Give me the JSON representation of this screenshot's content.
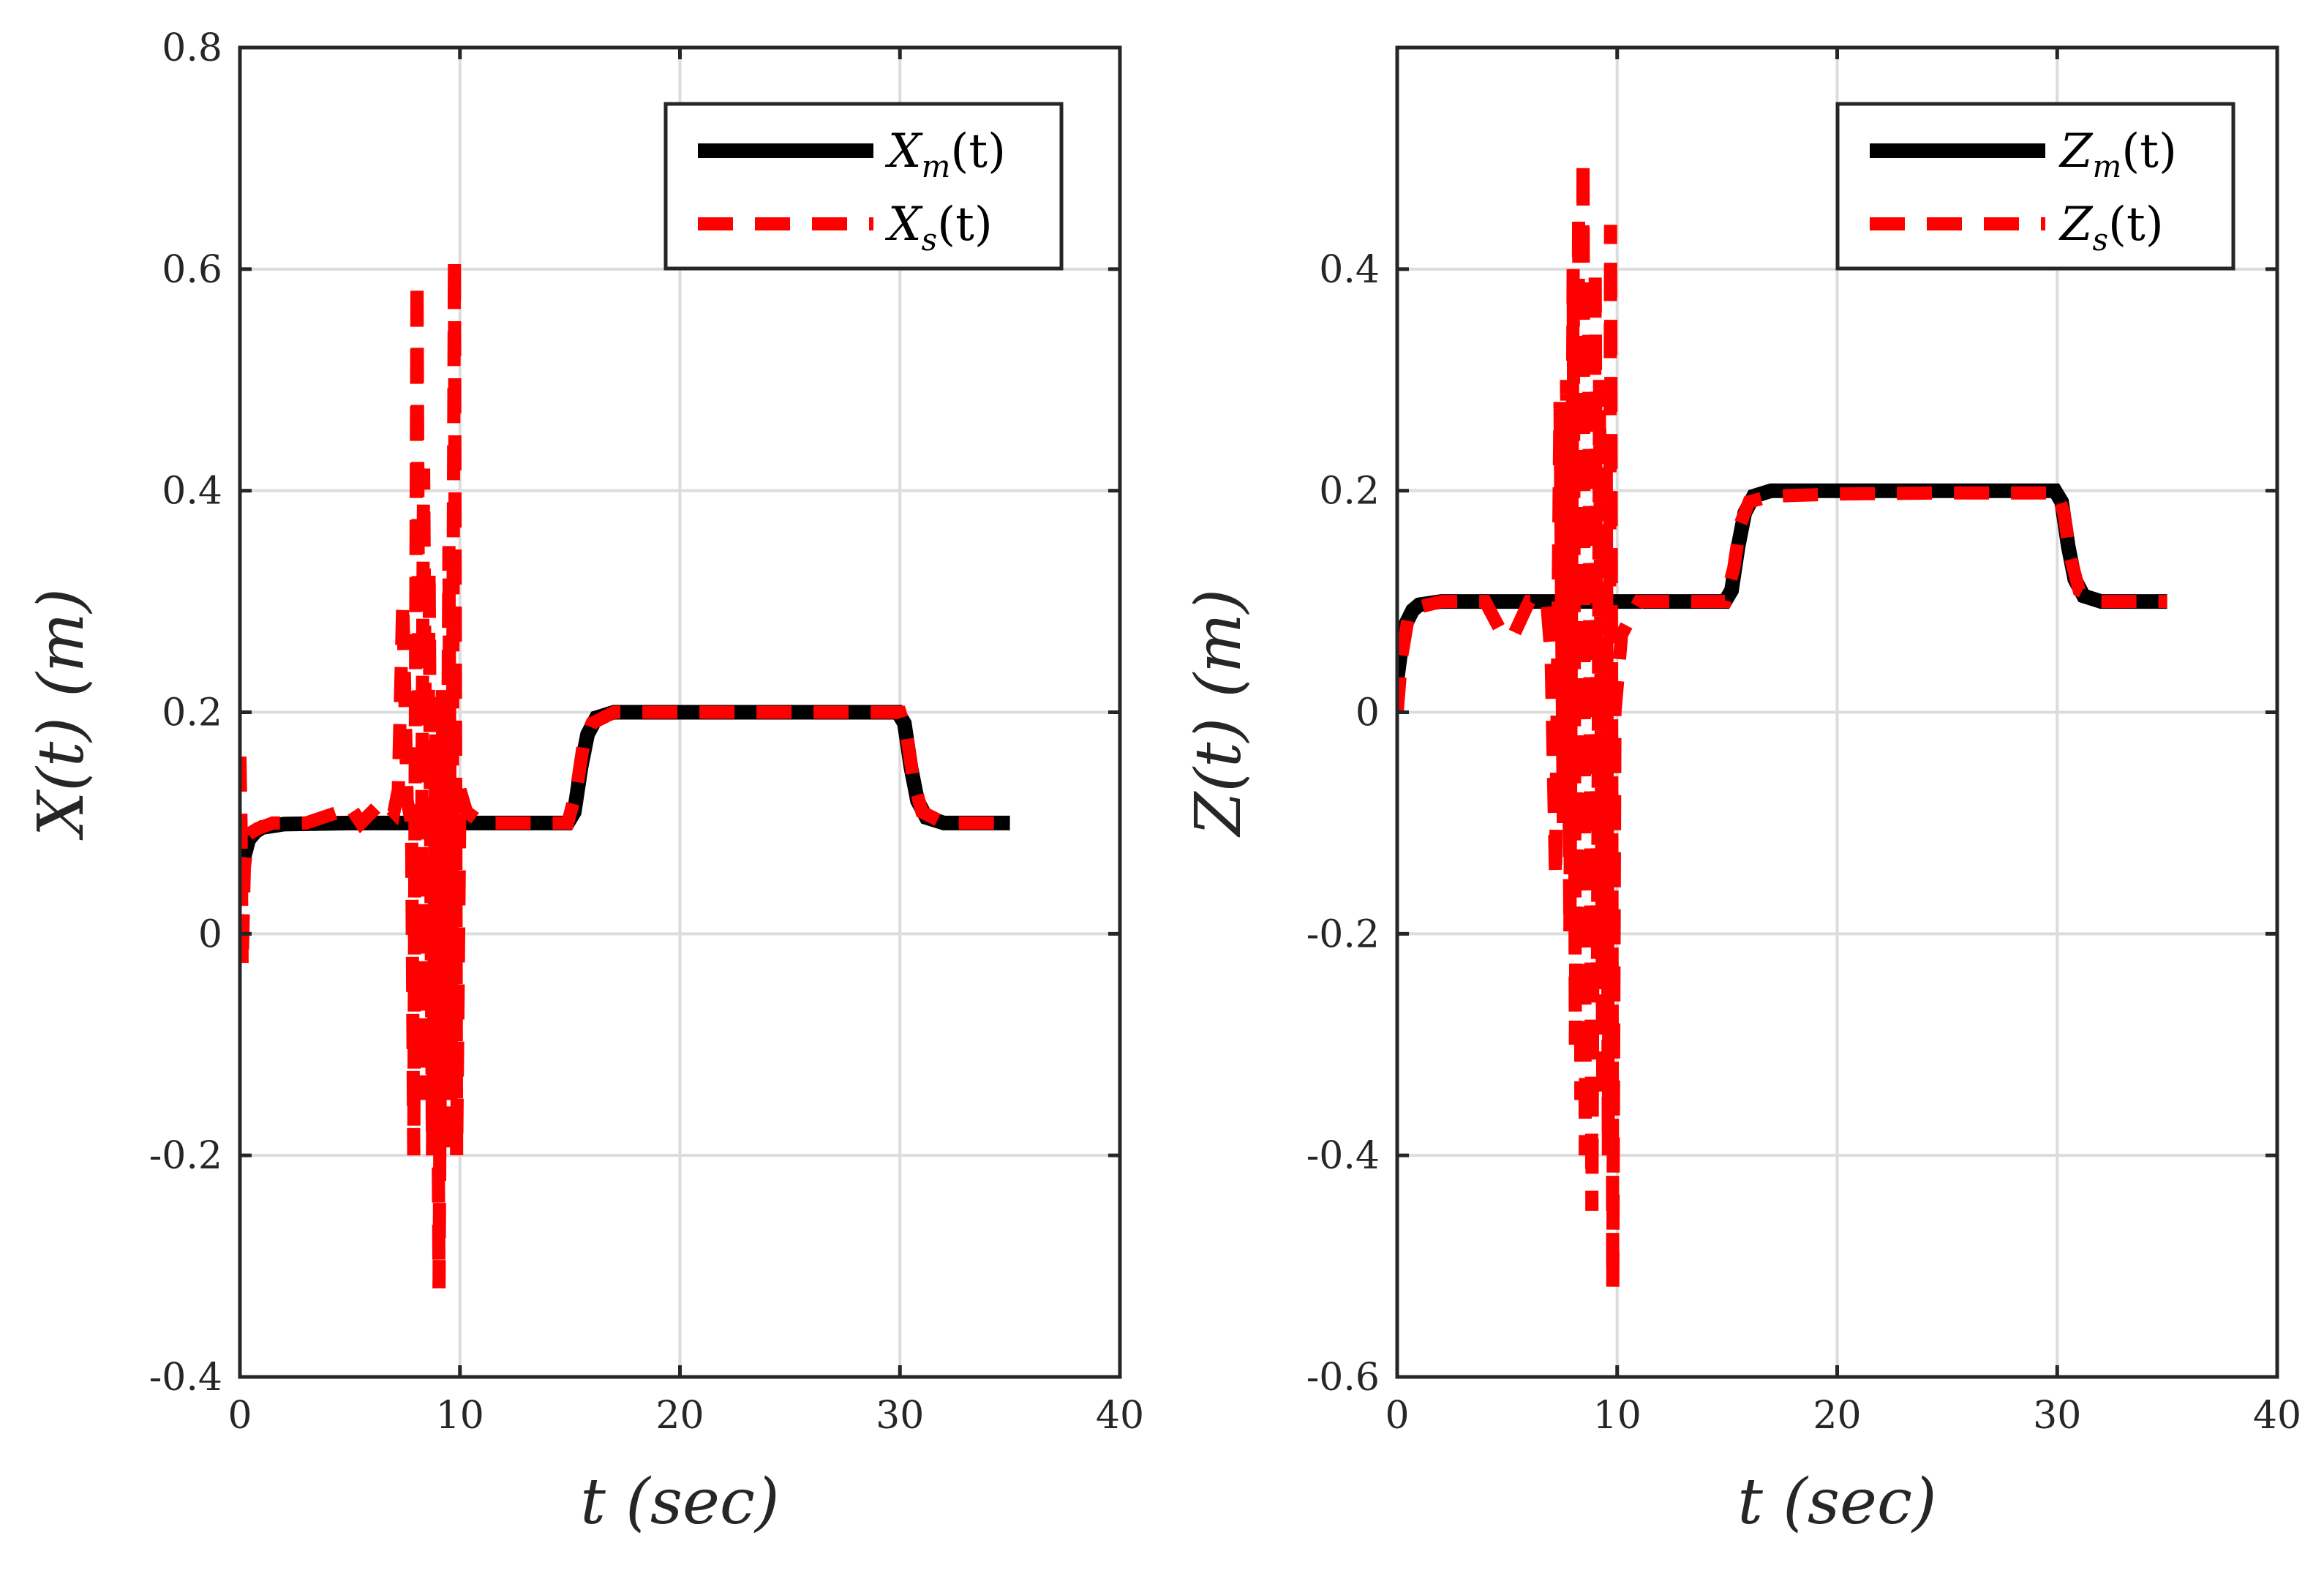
{
  "figure": {
    "description_free": true
  },
  "chart_data": [
    {
      "type": "line",
      "title": "",
      "xlabel": "t (sec)",
      "ylabel": "X(t) (m)",
      "xlim": [
        0,
        40
      ],
      "ylim": [
        -0.4,
        0.8
      ],
      "xticks": [
        0,
        10,
        20,
        30,
        40
      ],
      "yticks": [
        -0.4,
        -0.2,
        0,
        0.2,
        0.4,
        0.6,
        0.8
      ],
      "xtick_labels": [
        "0",
        "10",
        "20",
        "30",
        "40"
      ],
      "ytick_labels": [
        "-0.4",
        "-0.2",
        "0",
        "0.2",
        "0.4",
        "0.6",
        "0.8"
      ],
      "grid": true,
      "legend_position": "top-right",
      "series": [
        {
          "name": "X_m(t)",
          "legend_main": "X",
          "legend_sub": "m",
          "legend_tail": "(t)",
          "color": "#000000",
          "style": "solid",
          "points": [
            [
              0,
              0.06
            ],
            [
              0.1,
              0.05
            ],
            [
              0.2,
              0.07
            ],
            [
              0.4,
              0.085
            ],
            [
              0.7,
              0.092
            ],
            [
              1,
              0.096
            ],
            [
              2,
              0.099
            ],
            [
              5,
              0.1
            ],
            [
              10,
              0.1
            ],
            [
              14.9,
              0.1
            ],
            [
              15.2,
              0.11
            ],
            [
              15.5,
              0.15
            ],
            [
              15.8,
              0.18
            ],
            [
              16.2,
              0.195
            ],
            [
              17,
              0.2
            ],
            [
              20,
              0.2
            ],
            [
              25,
              0.2
            ],
            [
              29.9,
              0.2
            ],
            [
              30.2,
              0.19
            ],
            [
              30.5,
              0.15
            ],
            [
              30.8,
              0.12
            ],
            [
              31.2,
              0.105
            ],
            [
              32,
              0.1
            ],
            [
              35,
              0.1
            ]
          ]
        },
        {
          "name": "X_s(t)",
          "legend_main": "X",
          "legend_sub": "s",
          "legend_tail": "(t)",
          "color": "#ff0000",
          "style": "dashed",
          "points": [
            [
              0,
              0.16
            ],
            [
              0.05,
              0.1
            ],
            [
              0.1,
              -0.03
            ],
            [
              0.2,
              0.06
            ],
            [
              0.4,
              0.09
            ],
            [
              0.8,
              0.095
            ],
            [
              1.5,
              0.1
            ],
            [
              3,
              0.1
            ],
            [
              4.5,
              0.11
            ],
            [
              5,
              0.115
            ],
            [
              5.5,
              0.1
            ],
            [
              6,
              0.11
            ],
            [
              6.5,
              0.12
            ],
            [
              7,
              0.11
            ],
            [
              7.2,
              0.13
            ],
            [
              7.4,
              0.3
            ],
            [
              7.6,
              0.12
            ],
            [
              7.8,
              0.1
            ],
            [
              7.9,
              -0.2
            ],
            [
              8.05,
              0.59
            ],
            [
              8.2,
              -0.15
            ],
            [
              8.35,
              0.42
            ],
            [
              8.5,
              -0.05
            ],
            [
              8.6,
              0.33
            ],
            [
              8.75,
              -0.2
            ],
            [
              8.9,
              0.18
            ],
            [
              9.05,
              -0.32
            ],
            [
              9.2,
              0.22
            ],
            [
              9.35,
              -0.2
            ],
            [
              9.5,
              0.35
            ],
            [
              9.6,
              -0.15
            ],
            [
              9.75,
              0.61
            ],
            [
              9.85,
              -0.2
            ],
            [
              10,
              0.13
            ],
            [
              10.3,
              0.11
            ],
            [
              11,
              0.1
            ],
            [
              14.5,
              0.1
            ],
            [
              14.9,
              0.1
            ],
            [
              15.3,
              0.13
            ],
            [
              15.6,
              0.17
            ],
            [
              16,
              0.19
            ],
            [
              17,
              0.2
            ],
            [
              20,
              0.2
            ],
            [
              25,
              0.2
            ],
            [
              30,
              0.2
            ],
            [
              30.3,
              0.18
            ],
            [
              30.6,
              0.14
            ],
            [
              31,
              0.11
            ],
            [
              32,
              0.1
            ],
            [
              35,
              0.1
            ]
          ]
        }
      ]
    },
    {
      "type": "line",
      "title": "",
      "xlabel": "t (sec)",
      "ylabel": "Z(t) (m)",
      "xlim": [
        0,
        40
      ],
      "ylim": [
        -0.6,
        0.6
      ],
      "xticks": [
        0,
        10,
        20,
        30,
        40
      ],
      "yticks": [
        -0.6,
        -0.4,
        -0.2,
        0,
        0.2,
        0.4
      ],
      "xtick_labels": [
        "0",
        "10",
        "20",
        "30",
        "40"
      ],
      "ytick_labels": [
        "-0.6",
        "-0.4",
        "-0.2",
        "0",
        "0.2",
        "0.4"
      ],
      "grid": true,
      "legend_position": "top-right",
      "series": [
        {
          "name": "Z_m(t)",
          "legend_main": "Z",
          "legend_sub": "m",
          "legend_tail": "(t)",
          "color": "#000000",
          "style": "solid",
          "points": [
            [
              0,
              0.03
            ],
            [
              0.2,
              0.06
            ],
            [
              0.4,
              0.08
            ],
            [
              0.7,
              0.092
            ],
            [
              1,
              0.097
            ],
            [
              2,
              0.1
            ],
            [
              5,
              0.1
            ],
            [
              10,
              0.1
            ],
            [
              14.9,
              0.1
            ],
            [
              15.2,
              0.11
            ],
            [
              15.5,
              0.15
            ],
            [
              15.8,
              0.18
            ],
            [
              16.2,
              0.195
            ],
            [
              17,
              0.2
            ],
            [
              20,
              0.2
            ],
            [
              25,
              0.2
            ],
            [
              29.9,
              0.2
            ],
            [
              30.2,
              0.19
            ],
            [
              30.5,
              0.15
            ],
            [
              30.8,
              0.12
            ],
            [
              31.2,
              0.105
            ],
            [
              32,
              0.1
            ],
            [
              35,
              0.1
            ]
          ]
        },
        {
          "name": "Z_s(t)",
          "legend_main": "Z",
          "legend_sub": "s",
          "legend_tail": "(t)",
          "color": "#ff0000",
          "style": "dashed",
          "points": [
            [
              0,
              0
            ],
            [
              0.2,
              0.05
            ],
            [
              0.5,
              0.085
            ],
            [
              1,
              0.095
            ],
            [
              2,
              0.1
            ],
            [
              4,
              0.1
            ],
            [
              4.8,
              0.07
            ],
            [
              5.3,
              0.07
            ],
            [
              6,
              0.1
            ],
            [
              6.8,
              0.1
            ],
            [
              7,
              0.05
            ],
            [
              7.2,
              -0.15
            ],
            [
              7.4,
              0.28
            ],
            [
              7.55,
              -0.1
            ],
            [
              7.7,
              0.3
            ],
            [
              7.85,
              -0.2
            ],
            [
              8,
              0.4
            ],
            [
              8.1,
              -0.3
            ],
            [
              8.25,
              0.45
            ],
            [
              8.35,
              -0.35
            ],
            [
              8.45,
              0.5
            ],
            [
              8.55,
              -0.4
            ],
            [
              8.7,
              0.35
            ],
            [
              8.85,
              -0.45
            ],
            [
              9,
              0.4
            ],
            [
              9.1,
              -0.25
            ],
            [
              9.2,
              0.3
            ],
            [
              9.35,
              -0.35
            ],
            [
              9.5,
              0.25
            ],
            [
              9.6,
              -0.4
            ],
            [
              9.7,
              0.44
            ],
            [
              9.8,
              -0.52
            ],
            [
              9.9,
              0
            ],
            [
              10.2,
              0.07
            ],
            [
              11,
              0.1
            ],
            [
              14.9,
              0.1
            ],
            [
              15.3,
              0.13
            ],
            [
              15.6,
              0.17
            ],
            [
              16,
              0.19
            ],
            [
              17,
              0.195
            ],
            [
              20,
              0.197
            ],
            [
              25,
              0.198
            ],
            [
              30,
              0.198
            ],
            [
              30.3,
              0.18
            ],
            [
              30.6,
              0.14
            ],
            [
              31,
              0.11
            ],
            [
              32,
              0.1
            ],
            [
              35,
              0.1
            ]
          ]
        }
      ]
    }
  ]
}
